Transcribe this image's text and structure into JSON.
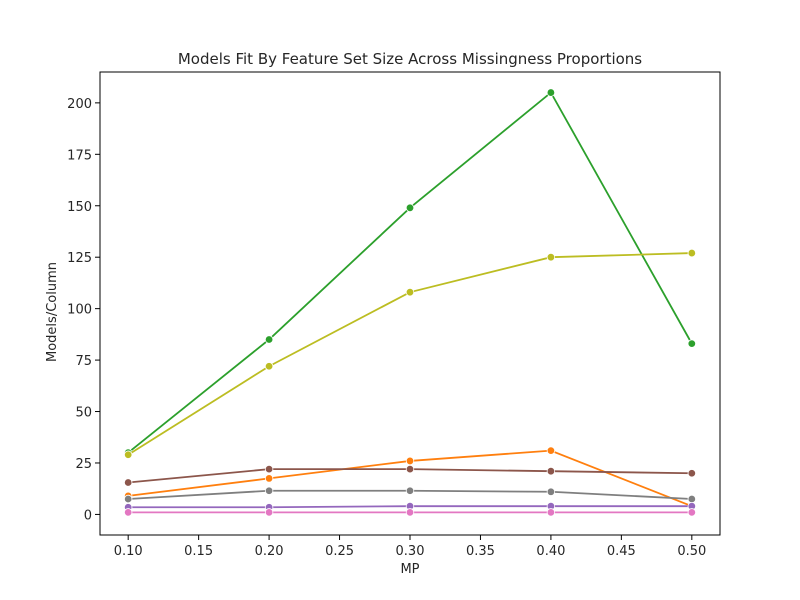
{
  "chart_data": {
    "type": "line",
    "title": "Models Fit By Feature Set Size Across Missingness Proportions",
    "xlabel": "MP",
    "ylabel": "Models/Column",
    "x": [
      0.1,
      0.2,
      0.3,
      0.4,
      0.5
    ],
    "xlim": [
      0.08,
      0.52
    ],
    "ylim": [
      -10,
      215
    ],
    "xticks": [
      "0.10",
      "0.15",
      "0.20",
      "0.25",
      "0.30",
      "0.35",
      "0.40",
      "0.45",
      "0.50"
    ],
    "yticks": [
      "0",
      "25",
      "50",
      "75",
      "100",
      "125",
      "150",
      "175",
      "200"
    ],
    "grid": false,
    "series": [
      {
        "color": "#2ca02c",
        "values": [
          30,
          85,
          149,
          205,
          83
        ]
      },
      {
        "color": "#bcbd22",
        "values": [
          29,
          72,
          108,
          125,
          127
        ]
      },
      {
        "color": "#ff7f0e",
        "values": [
          9,
          17.5,
          26,
          31,
          4
        ]
      },
      {
        "color": "#8c564b",
        "values": [
          15.5,
          22,
          22,
          21,
          20
        ]
      },
      {
        "color": "#7f7f7f",
        "values": [
          7.5,
          11.5,
          11.5,
          11,
          7.5
        ]
      },
      {
        "color": "#9467bd",
        "values": [
          3.5,
          3.5,
          4,
          4,
          4
        ]
      },
      {
        "color": "#e377c2",
        "values": [
          1,
          1,
          1,
          1,
          1
        ]
      }
    ]
  }
}
